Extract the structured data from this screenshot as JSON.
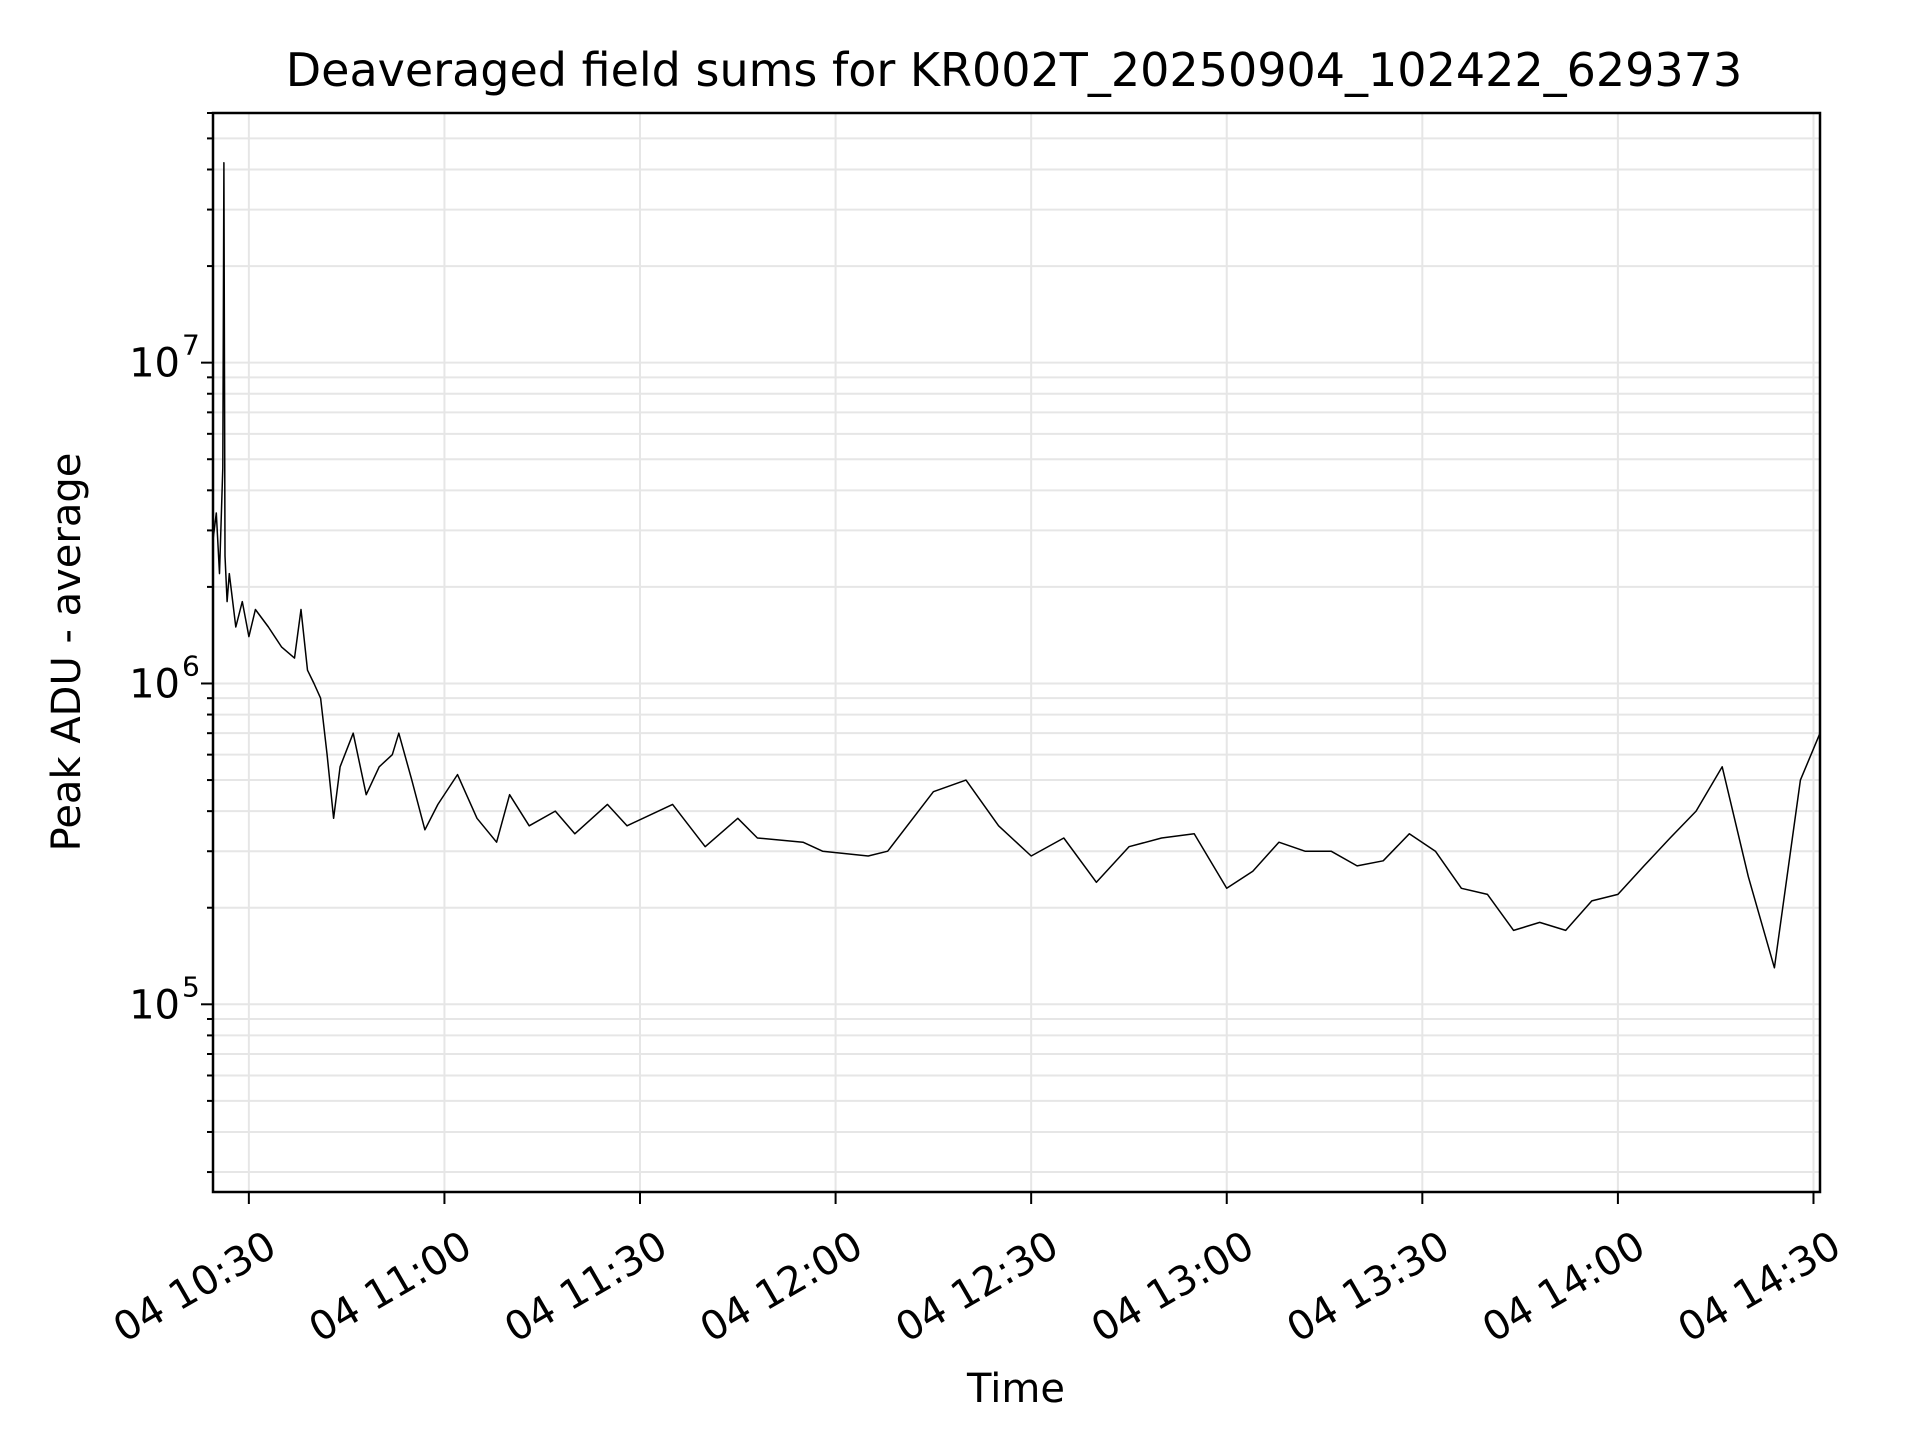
{
  "chart_data": {
    "type": "line",
    "title": "Deaveraged field sums for KR002T_20250904_102422_629373",
    "xlabel": "Time",
    "ylabel": "Peak ADU - average",
    "xscale": "time",
    "yscale": "log",
    "xlim": [
      "2025-09-04T10:24:30",
      "2025-09-04T14:31:00"
    ],
    "ylim": [
      26000,
      60000000
    ],
    "grid": true,
    "legend": "none",
    "line_color": "#000000",
    "xticks": [
      "2025-09-04T10:30",
      "2025-09-04T11:00",
      "2025-09-04T11:30",
      "2025-09-04T12:00",
      "2025-09-04T12:30",
      "2025-09-04T13:00",
      "2025-09-04T13:30",
      "2025-09-04T14:00",
      "2025-09-04T14:30"
    ],
    "xtick_labels": [
      "04 10:30",
      "04 11:00",
      "04 11:30",
      "04 12:00",
      "04 12:30",
      "04 13:00",
      "04 13:30",
      "04 14:00",
      "04 14:30"
    ],
    "yticks": [
      100000,
      1000000,
      10000000
    ],
    "ytick_labels": [
      {
        "base": "10",
        "exp": "5"
      },
      {
        "base": "10",
        "exp": "6"
      },
      {
        "base": "10",
        "exp": "7"
      }
    ],
    "series": [
      {
        "x": [
          "2025-09-04T10:24:30",
          "2025-09-04T10:25:00",
          "2025-09-04T10:25:30",
          "2025-09-04T10:26:00",
          "2025-09-04T10:26:10",
          "2025-09-04T10:26:20",
          "2025-09-04T10:26:40",
          "2025-09-04T10:27:00",
          "2025-09-04T10:28:00",
          "2025-09-04T10:29:00",
          "2025-09-04T10:30:00",
          "2025-09-04T10:31:00",
          "2025-09-04T10:33:00",
          "2025-09-04T10:35:00",
          "2025-09-04T10:37:00",
          "2025-09-04T10:38:00",
          "2025-09-04T10:39:00",
          "2025-09-04T10:40:00",
          "2025-09-04T10:41:00",
          "2025-09-04T10:42:00",
          "2025-09-04T10:43:00",
          "2025-09-04T10:44:00",
          "2025-09-04T10:46:00",
          "2025-09-04T10:48:00",
          "2025-09-04T10:50:00",
          "2025-09-04T10:52:00",
          "2025-09-04T10:53:00",
          "2025-09-04T10:55:00",
          "2025-09-04T10:57:00",
          "2025-09-04T10:59:00",
          "2025-09-04T11:02:00",
          "2025-09-04T11:05:00",
          "2025-09-04T11:08:00",
          "2025-09-04T11:10:00",
          "2025-09-04T11:13:00",
          "2025-09-04T11:17:00",
          "2025-09-04T11:20:00",
          "2025-09-04T11:25:00",
          "2025-09-04T11:28:00",
          "2025-09-04T11:35:00",
          "2025-09-04T11:40:00",
          "2025-09-04T11:45:00",
          "2025-09-04T11:48:00",
          "2025-09-04T11:55:00",
          "2025-09-04T11:58:00",
          "2025-09-04T12:05:00",
          "2025-09-04T12:08:00",
          "2025-09-04T12:15:00",
          "2025-09-04T12:20:00",
          "2025-09-04T12:25:00",
          "2025-09-04T12:30:00",
          "2025-09-04T12:35:00",
          "2025-09-04T12:40:00",
          "2025-09-04T12:45:00",
          "2025-09-04T12:50:00",
          "2025-09-04T12:55:00",
          "2025-09-04T13:00:00",
          "2025-09-04T13:04:00",
          "2025-09-04T13:08:00",
          "2025-09-04T13:12:00",
          "2025-09-04T13:16:00",
          "2025-09-04T13:20:00",
          "2025-09-04T13:24:00",
          "2025-09-04T13:28:00",
          "2025-09-04T13:32:00",
          "2025-09-04T13:36:00",
          "2025-09-04T13:40:00",
          "2025-09-04T13:44:00",
          "2025-09-04T13:48:00",
          "2025-09-04T13:52:00",
          "2025-09-04T13:56:00",
          "2025-09-04T14:00:00",
          "2025-09-04T14:04:00",
          "2025-09-04T14:08:00",
          "2025-09-04T14:12:00",
          "2025-09-04T14:16:00",
          "2025-09-04T14:20:00",
          "2025-09-04T14:24:00",
          "2025-09-04T14:28:00",
          "2025-09-04T14:31:00"
        ],
        "values": [
          2800000,
          3400000,
          2200000,
          4700000,
          42000000,
          2500000,
          1800000,
          2200000,
          1500000,
          1800000,
          1400000,
          1700000,
          1500000,
          1300000,
          1200000,
          1700000,
          1100000,
          1000000,
          900000,
          600000,
          380000,
          550000,
          700000,
          450000,
          550000,
          600000,
          700000,
          500000,
          350000,
          420000,
          520000,
          380000,
          320000,
          450000,
          360000,
          400000,
          340000,
          420000,
          360000,
          420000,
          310000,
          380000,
          330000,
          320000,
          300000,
          290000,
          300000,
          460000,
          500000,
          360000,
          290000,
          330000,
          240000,
          310000,
          330000,
          340000,
          230000,
          260000,
          320000,
          300000,
          300000,
          270000,
          280000,
          340000,
          300000,
          230000,
          220000,
          170000,
          180000,
          170000,
          210000,
          220000,
          270000,
          330000,
          400000,
          550000,
          250000,
          130000,
          500000,
          700000
        ]
      }
    ]
  }
}
